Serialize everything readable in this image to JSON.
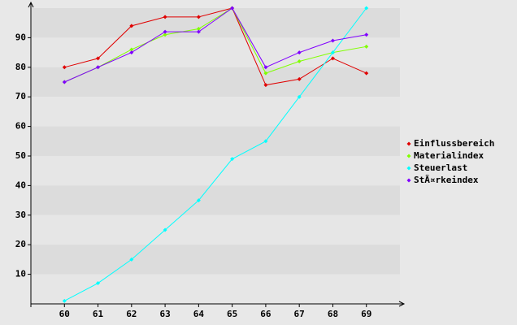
{
  "chart_data": {
    "type": "line",
    "x": [
      60,
      61,
      62,
      63,
      64,
      65,
      66,
      67,
      68,
      69
    ],
    "xlim": [
      59,
      70
    ],
    "xticks": [
      60,
      61,
      62,
      63,
      64,
      65,
      66,
      67,
      68,
      69
    ],
    "ylim": [
      0,
      100
    ],
    "yticks": [
      10,
      20,
      30,
      40,
      50,
      60,
      70,
      80,
      90
    ],
    "grid": true,
    "legend": "right",
    "series": [
      {
        "name": "Einflussbereich",
        "color": "#e00000",
        "values": [
          80,
          83,
          94,
          97,
          97,
          100,
          74,
          76,
          83,
          78
        ]
      },
      {
        "name": "Materialindex",
        "color": "#80ff00",
        "values": [
          75,
          80,
          86,
          91,
          93,
          100,
          78,
          82,
          85,
          87
        ]
      },
      {
        "name": "Steuerlast",
        "color": "#00ffff",
        "values": [
          1,
          7,
          15,
          25,
          35,
          49,
          55,
          70,
          85,
          100
        ]
      },
      {
        "name": "StÃ¤rkeindex",
        "color": "#8000ff",
        "values": [
          75,
          80,
          85,
          92,
          92,
          100,
          80,
          85,
          89,
          91
        ]
      }
    ]
  }
}
